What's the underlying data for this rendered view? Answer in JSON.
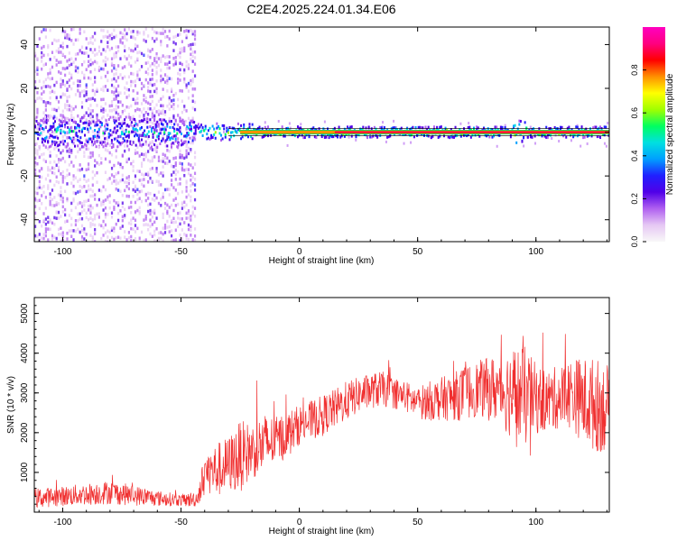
{
  "title": "C2E4.2025.224.01.34.E06",
  "chart_data": [
    {
      "type": "heatmap",
      "xlabel": "Height of straight line (km)",
      "ylabel": "Frequency (Hz)",
      "xlim": [
        -112,
        131
      ],
      "ylim": [
        -50,
        48
      ],
      "x_ticks": [
        -100,
        -50,
        0,
        50,
        100
      ],
      "y_ticks": [
        -40,
        -20,
        0,
        20,
        40
      ],
      "colorbar": {
        "label": "Normalized spectral amplitude",
        "range": [
          0.0,
          1.0
        ],
        "ticks": [
          "0.0",
          "0.2",
          "0.4",
          "0.6",
          "0.8"
        ],
        "colors": [
          "#f8f8f8",
          "#e6c8f4",
          "#b060f0",
          "#5000e8",
          "#2020ff",
          "#00a0ff",
          "#00e0e0",
          "#00ff60",
          "#a0ff00",
          "#ffff00",
          "#ff9000",
          "#ff0000",
          "#ff0080",
          "#ff00c0"
        ]
      },
      "description_values": {
        "dense_noise_region_km": [
          -112,
          -44
        ],
        "tone_frequency_hz": 0,
        "tone_peak_amplitude": 0.9
      }
    },
    {
      "type": "line",
      "xlabel": "Height of straight line (km)",
      "ylabel": "SNR (10 * v/v)",
      "xlim": [
        -112,
        131
      ],
      "ylim": [
        0,
        5400
      ],
      "x_ticks": [
        -100,
        -50,
        0,
        50,
        100
      ],
      "y_ticks": [
        1000,
        2000,
        3000,
        4000,
        5000
      ],
      "line_color": "#f03030",
      "series": [
        {
          "x": [
            -112,
            -100,
            -90,
            -80,
            -70,
            -60,
            -50,
            -45,
            -43,
            -40,
            -35,
            -30,
            -25,
            -20,
            -15,
            -10,
            -5,
            0,
            5,
            10,
            15,
            20,
            25,
            30,
            35,
            40,
            45,
            50,
            55,
            60,
            65,
            70,
            75,
            80,
            85,
            90,
            95,
            100,
            105,
            110,
            115,
            120,
            125,
            131
          ],
          "values": [
            350,
            400,
            450,
            500,
            420,
            350,
            300,
            320,
            350,
            1000,
            1050,
            1200,
            1400,
            1550,
            1700,
            1800,
            1950,
            2200,
            2300,
            2450,
            2600,
            2800,
            2950,
            3050,
            3100,
            3000,
            2900,
            2750,
            2800,
            2850,
            2900,
            3000,
            3100,
            3100,
            3100,
            3000,
            2900,
            2850,
            2800,
            2900,
            3000,
            2800,
            2700,
            2600
          ],
          "noise": [
            250,
            250,
            280,
            300,
            260,
            200,
            150,
            200,
            200,
            500,
            700,
            700,
            900,
            700,
            800,
            600,
            600,
            500,
            500,
            500,
            500,
            500,
            450,
            450,
            450,
            400,
            400,
            400,
            500,
            550,
            600,
            700,
            700,
            800,
            900,
            1200,
            1300,
            900,
            800,
            800,
            900,
            1100,
            1200,
            1100
          ]
        }
      ]
    }
  ]
}
